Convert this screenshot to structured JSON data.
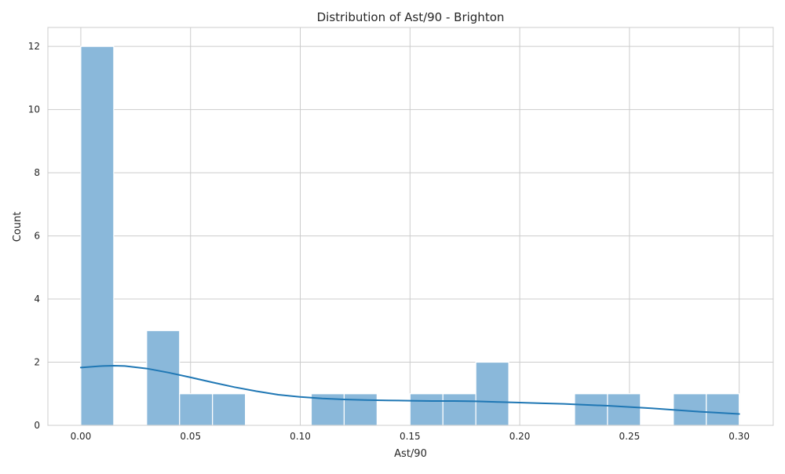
{
  "chart_data": {
    "type": "bar",
    "subtype": "histogram-with-kde",
    "title": "Distribution of Ast/90 - Brighton",
    "xlabel": "Ast/90",
    "ylabel": "Count",
    "xlim": [
      -0.015,
      0.3155
    ],
    "ylim": [
      0,
      12.6
    ],
    "grid": true,
    "xticks": [
      0.0,
      0.05,
      0.1,
      0.15,
      0.2,
      0.25,
      0.3
    ],
    "xtick_labels": [
      "0.00",
      "0.05",
      "0.10",
      "0.15",
      "0.20",
      "0.25",
      "0.30"
    ],
    "yticks": [
      0,
      2,
      4,
      6,
      8,
      10,
      12
    ],
    "ytick_labels": [
      "0",
      "2",
      "4",
      "6",
      "8",
      "10",
      "12"
    ],
    "bin_width": 0.015,
    "bins": [
      {
        "x0": 0.0,
        "x1": 0.015,
        "count": 12
      },
      {
        "x0": 0.015,
        "x1": 0.03,
        "count": 0
      },
      {
        "x0": 0.03,
        "x1": 0.045,
        "count": 3
      },
      {
        "x0": 0.045,
        "x1": 0.06,
        "count": 1
      },
      {
        "x0": 0.06,
        "x1": 0.075,
        "count": 1
      },
      {
        "x0": 0.075,
        "x1": 0.09,
        "count": 0
      },
      {
        "x0": 0.09,
        "x1": 0.105,
        "count": 0
      },
      {
        "x0": 0.105,
        "x1": 0.12,
        "count": 1
      },
      {
        "x0": 0.12,
        "x1": 0.135,
        "count": 1
      },
      {
        "x0": 0.135,
        "x1": 0.15,
        "count": 0
      },
      {
        "x0": 0.15,
        "x1": 0.165,
        "count": 1
      },
      {
        "x0": 0.165,
        "x1": 0.18,
        "count": 1
      },
      {
        "x0": 0.18,
        "x1": 0.195,
        "count": 2
      },
      {
        "x0": 0.195,
        "x1": 0.21,
        "count": 0
      },
      {
        "x0": 0.21,
        "x1": 0.225,
        "count": 0
      },
      {
        "x0": 0.225,
        "x1": 0.24,
        "count": 1
      },
      {
        "x0": 0.24,
        "x1": 0.255,
        "count": 1
      },
      {
        "x0": 0.255,
        "x1": 0.27,
        "count": 0
      },
      {
        "x0": 0.27,
        "x1": 0.285,
        "count": 1
      },
      {
        "x0": 0.285,
        "x1": 0.3,
        "count": 1
      }
    ],
    "kde": {
      "x": [
        0.0,
        0.01,
        0.015,
        0.02,
        0.03,
        0.04,
        0.05,
        0.06,
        0.07,
        0.08,
        0.09,
        0.1,
        0.11,
        0.12,
        0.13,
        0.14,
        0.15,
        0.16,
        0.17,
        0.18,
        0.19,
        0.2,
        0.21,
        0.22,
        0.23,
        0.24,
        0.25,
        0.26,
        0.27,
        0.28,
        0.29,
        0.3
      ],
      "y": [
        1.83,
        1.88,
        1.89,
        1.88,
        1.8,
        1.67,
        1.52,
        1.36,
        1.21,
        1.08,
        0.97,
        0.9,
        0.85,
        0.82,
        0.8,
        0.79,
        0.78,
        0.77,
        0.77,
        0.76,
        0.74,
        0.72,
        0.7,
        0.68,
        0.65,
        0.62,
        0.58,
        0.54,
        0.49,
        0.44,
        0.4,
        0.36
      ]
    },
    "colors": {
      "bar_fill": "#8ab8da",
      "bar_edge": "#ffffff",
      "kde_line": "#1f77b4",
      "grid": "#cccccc",
      "axes_edge": "#cccccc",
      "text": "#262626"
    }
  }
}
